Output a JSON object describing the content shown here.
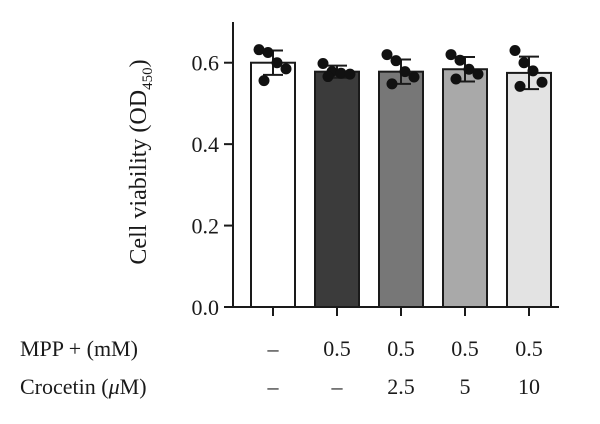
{
  "chart_data": {
    "type": "bar",
    "title": "",
    "xlabel": "",
    "ylabel": "Cell viability (OD",
    "ylabel_sub": "450",
    "ylabel_close": ")",
    "ylim": [
      0,
      0.7
    ],
    "yticks": [
      0.0,
      0.2,
      0.4,
      0.6
    ],
    "ytick_labels": [
      "0.0",
      "0.2",
      "0.4",
      "0.6"
    ],
    "grid": false,
    "legend": "none",
    "bars": [
      {
        "mpp": "–",
        "crocetin": "–",
        "mean": 0.6,
        "sd": 0.03,
        "color": "#ffffff",
        "points": [
          0.632,
          0.625,
          0.6,
          0.585,
          0.556
        ]
      },
      {
        "mpp": "0.5",
        "crocetin": "–",
        "mean": 0.578,
        "sd": 0.015,
        "color": "#3b3b3b",
        "points": [
          0.598,
          0.578,
          0.574,
          0.572,
          0.566
        ]
      },
      {
        "mpp": "0.5",
        "crocetin": "2.5",
        "mean": 0.578,
        "sd": 0.03,
        "color": "#777777",
        "points": [
          0.62,
          0.605,
          0.578,
          0.565,
          0.548
        ]
      },
      {
        "mpp": "0.5",
        "crocetin": "5",
        "mean": 0.584,
        "sd": 0.03,
        "color": "#a9a9a9",
        "points": [
          0.62,
          0.606,
          0.584,
          0.572,
          0.56
        ]
      },
      {
        "mpp": "0.5",
        "crocetin": "10",
        "mean": 0.575,
        "sd": 0.04,
        "color": "#e3e3e3",
        "points": [
          0.63,
          0.6,
          0.58,
          0.552,
          0.542
        ]
      }
    ],
    "row_labels": {
      "mpp": "MPP + (mM)",
      "crocetin_prefix": "Crocetin (",
      "crocetin_mu": "μ",
      "crocetin_suffix": "M)"
    }
  }
}
